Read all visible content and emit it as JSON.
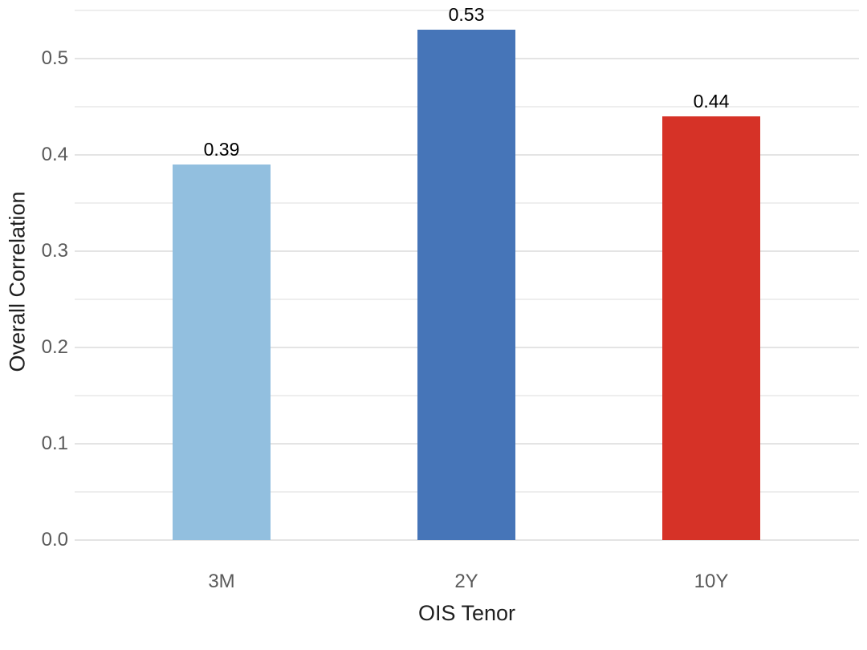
{
  "chart_data": {
    "type": "bar",
    "categories": [
      "3M",
      "2Y",
      "10Y"
    ],
    "values": [
      0.39,
      0.53,
      0.44
    ],
    "value_labels": [
      "0.39",
      "0.53",
      "0.44"
    ],
    "bar_colors": [
      "#92bfdf",
      "#4675b8",
      "#d63227"
    ],
    "title": "",
    "xlabel": "OIS Tenor",
    "ylabel": "Overall Correlation",
    "ylim": [
      0,
      0.55
    ],
    "yticks": [
      0.0,
      0.1,
      0.2,
      0.3,
      0.4,
      0.5
    ],
    "ytick_labels": [
      "0.0",
      "0.1",
      "0.2",
      "0.3",
      "0.4",
      "0.5"
    ],
    "minor_grid_step": 0.05,
    "grid": true,
    "legend": "none",
    "background_color": "#ffffff",
    "tick_label_color": "#595959",
    "axis_title_color": "#1f1f1f",
    "value_label_color": "#000000",
    "major_grid_color": "#e4e4e4",
    "minor_grid_color": "#eeeeee"
  }
}
